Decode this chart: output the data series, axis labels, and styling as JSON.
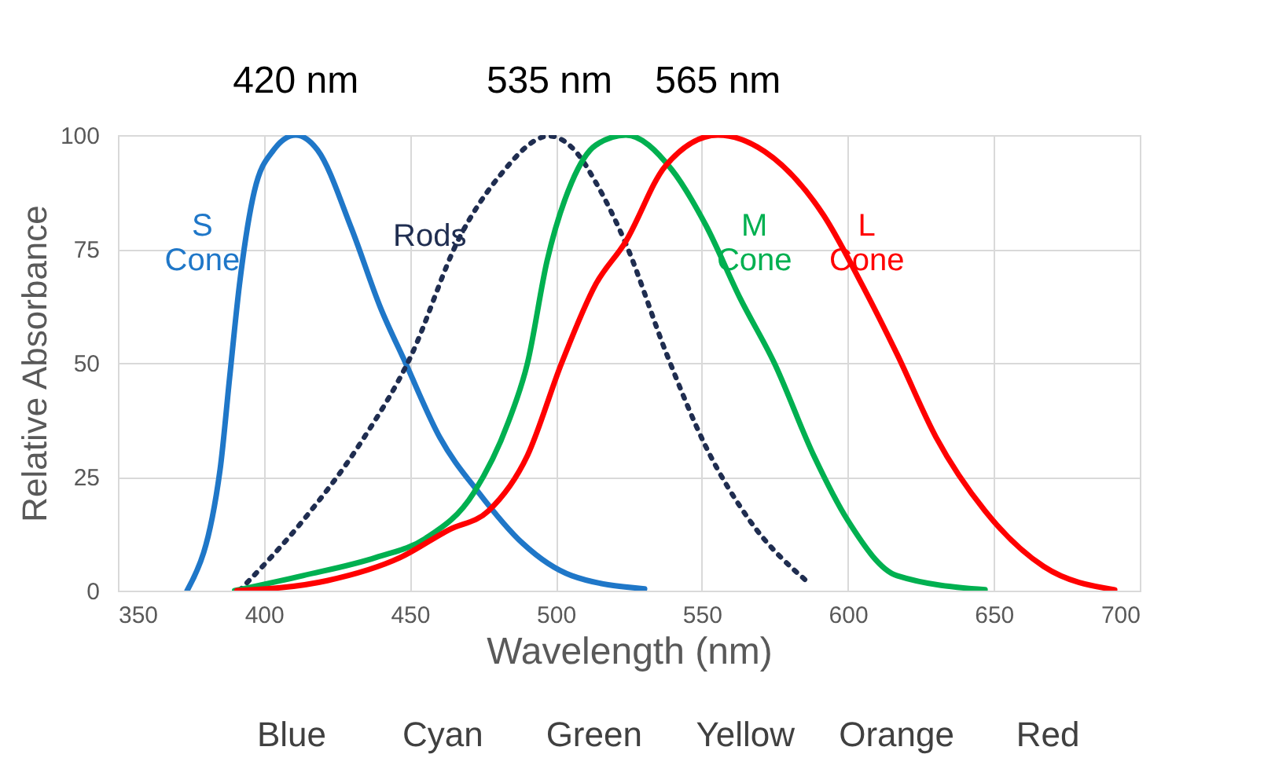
{
  "chart_data": {
    "type": "line",
    "xlabel": "Wavelength (nm)",
    "ylabel": "Relative Absorbance",
    "xlim": [
      350,
      700
    ],
    "xticks": [
      350,
      400,
      450,
      500,
      550,
      600,
      650,
      700
    ],
    "ylim": [
      0,
      100
    ],
    "yticks": [
      0,
      25,
      50,
      75,
      100
    ],
    "grid": true,
    "marker": "none",
    "line_style": "solid",
    "series": [
      {
        "name": "S Cone",
        "color": "#1f77c8",
        "x": [
          373.7,
          385,
          388.3,
          391.6,
          396.7,
          403.3,
          410.9,
          418.4,
          430,
          440,
          448.5,
          460.2,
          473.6,
          488.6,
          505.4,
          530.4
        ],
        "values": [
          0,
          26.6,
          47,
          67,
          87.6,
          96.7,
          100,
          96.7,
          79.5,
          62,
          50,
          33.7,
          21.5,
          10.4,
          3.3,
          0.4
        ]
      },
      {
        "name": "Rods",
        "color": "#1f2d50",
        "line_style": "dotted",
        "x": [
          391.6,
          413.4,
          433.4,
          450,
          466.9,
          480.3,
          497.8,
          507.7,
          513.7,
          523.8,
          537.9,
          551.3,
          566.4,
          586.6
        ],
        "values": [
          0,
          15.4,
          32.7,
          51,
          77.4,
          90.7,
          99.8,
          95.7,
          89.6,
          76.4,
          52,
          31.7,
          15.4,
          1.7
        ]
      },
      {
        "name": "M Cone",
        "color": "#00b050",
        "x": [
          390,
          413.4,
          438.5,
          455.2,
          471.9,
          483.6,
          490.3,
          497,
          505.4,
          513.7,
          524,
          539.6,
          551.3,
          563.1,
          574.8,
          588.3,
          600,
          616.8,
          647
        ],
        "values": [
          0,
          3.3,
          7.3,
          11.4,
          21.5,
          36.8,
          50,
          72.4,
          89.6,
          97.8,
          100,
          92.5,
          80.3,
          64.2,
          50,
          29.7,
          15.4,
          3.3,
          0.2
        ]
      },
      {
        "name": "L Cone",
        "color": "#ff0000",
        "x": [
          390.8,
          421.7,
          446.8,
          463.5,
          476.9,
          490.3,
          502,
          513.7,
          523.8,
          537.5,
          555.5,
          571.5,
          591.6,
          605,
          616.8,
          630.2,
          647,
          667.1,
          691.4
        ],
        "values": [
          0,
          2.2,
          7.3,
          13.4,
          17.5,
          29.7,
          50,
          67.3,
          76.5,
          93.2,
          100,
          96.4,
          82.5,
          67,
          52,
          33.7,
          17.5,
          5.3,
          0.2
        ]
      }
    ],
    "annotations": [
      {
        "text": "420 nm",
        "x": 410.9,
        "y": 100
      },
      {
        "text": "535 nm",
        "x": 497.8,
        "y": 100
      },
      {
        "text": "565 nm",
        "x": 555.5,
        "y": 100
      },
      "Blue",
      "Cyan",
      "Green",
      "Yellow",
      "Orange",
      "Red"
    ]
  }
}
